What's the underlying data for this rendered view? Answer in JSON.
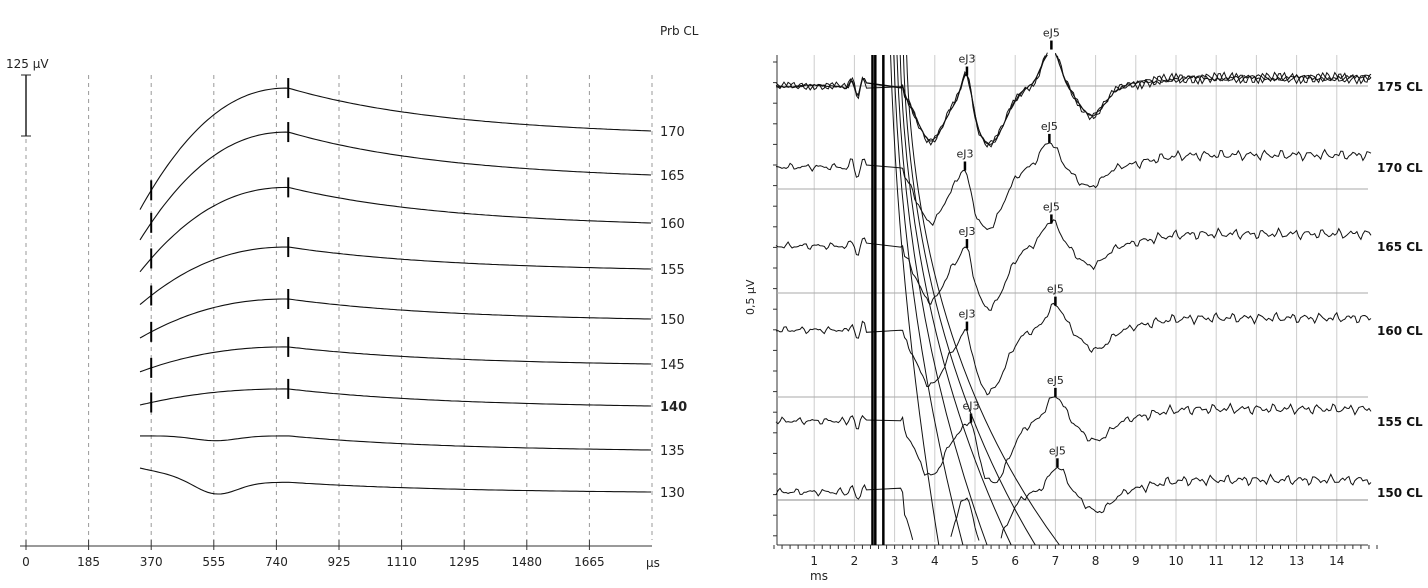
{
  "chart_data": [
    {
      "type": "line",
      "title": "Prb CL",
      "scale_bar_label": "125 µV",
      "scale_bar_uv": 125,
      "xlabel": "µs",
      "xlim": [
        0,
        1850
      ],
      "x_ticks": [
        0,
        185,
        370,
        555,
        740,
        925,
        1110,
        1295,
        1480,
        1665
      ],
      "grid": "vertical dashed",
      "trace_start_us": 337,
      "series": [
        {
          "name": "170",
          "bold": false,
          "start_uv": -161,
          "peak_uv": 88,
          "dip_uv": 0,
          "markers_us": [
            370,
            775
          ]
        },
        {
          "name": "165",
          "bold": false,
          "start_uv": -133,
          "peak_uv": 88,
          "dip_uv": 0,
          "markers_us": [
            370,
            775
          ]
        },
        {
          "name": "160",
          "bold": false,
          "start_uv": -100,
          "peak_uv": 73,
          "dip_uv": 0,
          "markers_us": [
            370,
            775
          ]
        },
        {
          "name": "155",
          "bold": false,
          "start_uv": -73,
          "peak_uv": 45,
          "dip_uv": 0,
          "markers_us": [
            370,
            775
          ]
        },
        {
          "name": "150",
          "bold": false,
          "start_uv": -39,
          "peak_uv": 41,
          "dip_uv": 0,
          "markers_us": [
            370,
            775
          ]
        },
        {
          "name": "145",
          "bold": false,
          "start_uv": -16,
          "peak_uv": 35,
          "dip_uv": 0,
          "markers_us": [
            370,
            775
          ]
        },
        {
          "name": "140",
          "bold": true,
          "start_uv": 2,
          "peak_uv": 35,
          "dip_uv": 0,
          "markers_us": [
            370,
            775
          ]
        },
        {
          "name": "135",
          "bold": false,
          "start_uv": 29,
          "peak_uv": 29,
          "dip_uv": -10,
          "markers_us": []
        },
        {
          "name": "130",
          "bold": false,
          "start_uv": 49,
          "peak_uv": 20,
          "dip_uv": -30,
          "markers_us": []
        }
      ]
    },
    {
      "type": "line",
      "ylabel": "0,5 µV",
      "xlabel": "ms",
      "xlim": [
        0,
        15
      ],
      "x_ticks": [
        1,
        2,
        3,
        4,
        5,
        6,
        7,
        8,
        9,
        10,
        11,
        12,
        13,
        14
      ],
      "grid": "vertical and baselines",
      "series": [
        {
          "name": "175 CL",
          "repeats": 3,
          "peaks": [
            {
              "label": "eJ3",
              "ms": 4.8
            },
            {
              "label": "eJ5",
              "ms": 6.9
            }
          ]
        },
        {
          "name": "170 CL",
          "repeats": 1,
          "peaks": [
            {
              "label": "eJ3",
              "ms": 4.75
            },
            {
              "label": "eJ5",
              "ms": 6.85
            }
          ]
        },
        {
          "name": "165 CL",
          "repeats": 1,
          "peaks": [
            {
              "label": "eJ3",
              "ms": 4.8
            },
            {
              "label": "eJ5",
              "ms": 6.9
            }
          ]
        },
        {
          "name": "160 CL",
          "repeats": 1,
          "peaks": [
            {
              "label": "eJ3",
              "ms": 4.8
            },
            {
              "label": "eJ5",
              "ms": 7.0
            }
          ]
        },
        {
          "name": "155 CL",
          "repeats": 1,
          "peaks": [
            {
              "label": "eJ3",
              "ms": 4.9
            },
            {
              "label": "eJ5",
              "ms": 7.0
            }
          ]
        },
        {
          "name": "150 CL",
          "repeats": 1,
          "peaks": [
            {
              "label": "eJ5",
              "ms": 7.05
            }
          ]
        }
      ]
    }
  ]
}
